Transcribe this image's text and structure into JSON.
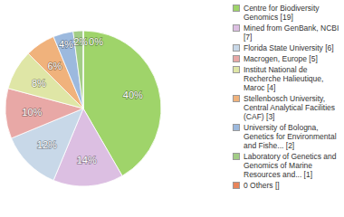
{
  "chart_data": {
    "type": "pie",
    "categories": [
      "Centre for Biodiversity Genomics [19]",
      "Mined from GenBank, NCBI [7]",
      "Florida State University [6]",
      "Macrogen, Europe [5]",
      "Institut National de Recherche Halieutique, Maroc [4]",
      "Stellenbosch University, Central Analytical Facilities (CAF) [3]",
      "University of Bologna, Genetics for Environmental and Fishe... [2]",
      "Laboratory of Genetics and Genomics of Marine Resources and... [1]",
      "0 Others []"
    ],
    "values": [
      40,
      14,
      12,
      10,
      8,
      6,
      4,
      2,
      0
    ],
    "value_labels": [
      "40%",
      "14%",
      "12%",
      "10%",
      "8%",
      "6%",
      "4%",
      "2%",
      "0%"
    ],
    "colors": [
      "#9fd46a",
      "#dcbfe2",
      "#c8d8e8",
      "#e8a8a6",
      "#dfe6a6",
      "#f0b27c",
      "#9cb9de",
      "#a2cd86",
      "#e8845a"
    ],
    "data_labels": true,
    "legend": "right"
  }
}
